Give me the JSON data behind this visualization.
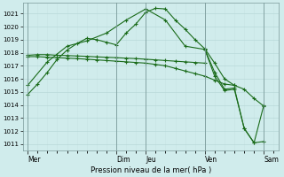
{
  "bg_color": "#d0ecec",
  "grid_color_major": "#b8d8d8",
  "grid_color_minor": "#c8e4e4",
  "line_color": "#1a6b1a",
  "ylabel": "Pression niveau de la mer( hPa )",
  "ylim": [
    1010.5,
    1021.8
  ],
  "yticks": [
    1011,
    1012,
    1013,
    1014,
    1015,
    1016,
    1017,
    1018,
    1019,
    1020,
    1021
  ],
  "x_day_labels": [
    "Mer",
    "Dim",
    "Jeu",
    "Ven",
    "Sam"
  ],
  "x_day_positions": [
    0,
    9,
    12,
    18,
    24
  ],
  "xlim": [
    -0.5,
    25.5
  ],
  "n_steps": 25,
  "line1_x": [
    0,
    1,
    2,
    3,
    4,
    5,
    6,
    7,
    8,
    9,
    10,
    11,
    12,
    13,
    14,
    15,
    16,
    17,
    18,
    19,
    20,
    21,
    22,
    23,
    24
  ],
  "line1_y": [
    1014.8,
    1015.6,
    1016.5,
    1017.5,
    1018.2,
    1018.7,
    1019.1,
    1019.0,
    1018.8,
    1018.6,
    1019.5,
    1020.2,
    1021.1,
    1021.4,
    1021.35,
    1020.5,
    1019.8,
    1019.0,
    1018.3,
    1017.2,
    1016.0,
    1015.5,
    1015.2,
    1014.5,
    1013.9
  ],
  "line2_x": [
    0,
    1,
    2,
    3,
    4,
    5,
    6,
    7,
    8,
    9,
    10,
    11,
    12,
    13,
    14,
    15,
    16,
    17,
    18
  ],
  "line2_y": [
    1017.8,
    1017.85,
    1017.85,
    1017.8,
    1017.78,
    1017.75,
    1017.72,
    1017.68,
    1017.65,
    1017.62,
    1017.58,
    1017.55,
    1017.5,
    1017.45,
    1017.4,
    1017.35,
    1017.3,
    1017.25,
    1017.2
  ],
  "line3_x": [
    0,
    1,
    2,
    3,
    4,
    5,
    6,
    7,
    8,
    9,
    10,
    11,
    12,
    13,
    14,
    15,
    16,
    17,
    18,
    19,
    20,
    21
  ],
  "line3_y": [
    1017.7,
    1017.7,
    1017.65,
    1017.62,
    1017.58,
    1017.55,
    1017.5,
    1017.45,
    1017.4,
    1017.35,
    1017.3,
    1017.25,
    1017.2,
    1017.1,
    1017.0,
    1016.8,
    1016.6,
    1016.4,
    1016.2,
    1015.9,
    1015.6,
    1015.5
  ],
  "line4_x": [
    0,
    2,
    4,
    6,
    8,
    10,
    12,
    14,
    16,
    18,
    19,
    20,
    21,
    22,
    23,
    24
  ],
  "line4_y": [
    1015.5,
    1017.3,
    1018.5,
    1018.9,
    1019.5,
    1020.5,
    1021.35,
    1020.5,
    1018.5,
    1018.25,
    1016.5,
    1015.2,
    1015.3,
    1012.2,
    1011.1,
    1011.2
  ],
  "line5_x": [
    18,
    19,
    20,
    21,
    22,
    23,
    24
  ],
  "line5_y": [
    1018.25,
    1016.2,
    1015.1,
    1015.2,
    1012.2,
    1011.1,
    1014.0
  ]
}
